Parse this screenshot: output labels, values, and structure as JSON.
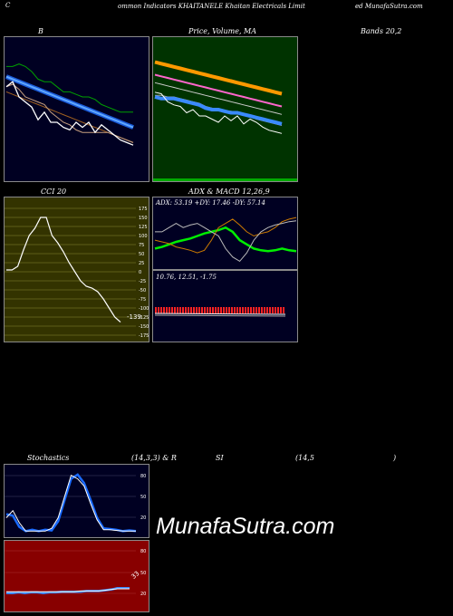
{
  "header": {
    "left_c": "C",
    "left": "ommon  Indicators KHAITANELE Khaitan  Electricals Limit",
    "right": "ed MunafaSutra.com"
  },
  "titles": {
    "b": "B",
    "price": "Price,  Volume,  MA",
    "bands": "Bands 20,2",
    "cci": "CCI 20",
    "adx": "ADX  & MACD 12,26,9",
    "stoch": "Stochastics",
    "stoch_params": "(14,3,3) & R",
    "rsi": "SI",
    "rsi_params": "(14,5",
    "rsi_close": ")"
  },
  "cci_axis": [
    "175",
    "150",
    "125",
    "100",
    "75",
    "50",
    "25",
    "0",
    "-25",
    "-50",
    "-75",
    "-100",
    "-125",
    "-150",
    "-175"
  ],
  "adx": {
    "info": "ADX: 53.19  +DY: 17.46  -DY: 57.14",
    "macd_info": "10.76,   12.51,  -1.75"
  },
  "stoch_axis": [
    "80",
    "50",
    "20"
  ],
  "rsi_axis": [
    "80",
    "50",
    "20"
  ],
  "labels": {
    "cci_value": "-139",
    "rsi_value": "33"
  },
  "watermark": "MunafaSutra.com",
  "chart_data": [
    {
      "type": "line",
      "title": "B",
      "series": [
        {
          "values": [
            62,
            62,
            63,
            62,
            60,
            57,
            56,
            56,
            54,
            52,
            52,
            51,
            50,
            50,
            49,
            47,
            46,
            45,
            44,
            44,
            44
          ]
        },
        {
          "values": [
            58,
            57,
            56,
            55,
            54,
            53,
            52,
            51,
            50,
            49,
            48,
            47,
            46,
            45,
            44,
            43,
            42,
            41,
            40,
            39,
            38
          ]
        },
        {
          "values": [
            52,
            51,
            50,
            49,
            48,
            47,
            46,
            45,
            44,
            43,
            42,
            41,
            40,
            39,
            38,
            37,
            36,
            35,
            34,
            33,
            32
          ]
        },
        {
          "values": [
            54,
            55,
            53,
            50,
            49,
            48,
            47,
            44,
            42,
            40,
            39,
            37,
            36,
            36,
            36,
            36,
            36,
            35,
            34,
            33,
            32
          ]
        },
        {
          "values": [
            55,
            56,
            51,
            49,
            47,
            44,
            45,
            42,
            41,
            41,
            40,
            40,
            39,
            41,
            38,
            40,
            38,
            37,
            36,
            34,
            33
          ]
        },
        {
          "values": [
            54,
            56,
            50,
            48,
            46,
            41,
            44,
            40,
            40,
            38,
            37,
            40,
            38,
            40,
            36,
            39,
            37,
            35,
            33,
            32,
            31
          ]
        }
      ]
    },
    {
      "type": "line",
      "title": "Price,  Volume,  MA",
      "series": [
        {
          "values": [
            100,
            99,
            98,
            97,
            96,
            95,
            94,
            93,
            92,
            91,
            90,
            89,
            88,
            87,
            86,
            85,
            84,
            83,
            82,
            81,
            80
          ]
        },
        {
          "values": [
            92,
            91,
            90,
            89,
            88,
            87,
            86,
            85,
            84,
            83,
            82,
            81,
            80,
            79,
            78,
            77,
            76,
            75,
            74,
            73,
            72
          ]
        },
        {
          "values": [
            87,
            86,
            85,
            84,
            83,
            82,
            81,
            80,
            79,
            78,
            77,
            76,
            75,
            74,
            73,
            72,
            71,
            70,
            69,
            68,
            67
          ]
        },
        {
          "values": [
            79,
            79,
            78,
            78,
            77,
            76,
            75,
            74,
            72,
            71,
            70,
            69,
            69,
            68,
            67,
            66,
            64,
            63,
            62,
            61,
            60
          ]
        },
        {
          "values": [
            78,
            77,
            77,
            77,
            76,
            75,
            74,
            73,
            71,
            70,
            70,
            69,
            68,
            68,
            67,
            66,
            65,
            64,
            63,
            62,
            61
          ]
        },
        {
          "values": [
            81,
            80,
            75,
            73,
            72,
            68,
            70,
            66,
            66,
            64,
            62,
            66,
            63,
            66,
            61,
            64,
            62,
            59,
            57,
            56,
            55
          ]
        }
      ]
    },
    {
      "type": "line",
      "title": "CCI 20",
      "ylim": [
        -175,
        175
      ],
      "series": [
        {
          "values": [
            5,
            5,
            15,
            60,
            100,
            120,
            150,
            150,
            100,
            80,
            55,
            25,
            0,
            -25,
            -40,
            -45,
            -55,
            -75,
            -100,
            -125,
            -139
          ]
        }
      ]
    },
    {
      "type": "line",
      "title": "ADX  & MACD 12,26,9",
      "series": [
        {
          "values": [
            20,
            22,
            25,
            28,
            30,
            32,
            35,
            38,
            40,
            42,
            45,
            40,
            30,
            25,
            20,
            18,
            17,
            18,
            20,
            18,
            17
          ]
        },
        {
          "values": [
            30,
            28,
            26,
            22,
            20,
            18,
            15,
            18,
            30,
            45,
            50,
            55,
            48,
            40,
            35,
            38,
            40,
            45,
            52,
            55,
            57
          ]
        },
        {
          "values": [
            40,
            40,
            45,
            50,
            45,
            48,
            50,
            45,
            40,
            35,
            20,
            10,
            5,
            15,
            30,
            40,
            45,
            48,
            50,
            52,
            53
          ]
        }
      ]
    },
    {
      "type": "line",
      "title": "Stochastics (14,3,3)",
      "ylim": [
        0,
        100
      ],
      "series": [
        {
          "values": [
            30,
            28,
            12,
            6,
            8,
            6,
            8,
            7,
            20,
            50,
            80,
            86,
            74,
            50,
            25,
            10,
            9,
            8,
            6,
            7,
            6
          ]
        },
        {
          "values": [
            25,
            35,
            18,
            6,
            6,
            6,
            6,
            10,
            25,
            55,
            85,
            80,
            70,
            45,
            22,
            8,
            8,
            7,
            6,
            6,
            6
          ]
        }
      ]
    },
    {
      "type": "line",
      "title": "RSI (14,5)",
      "ylim": [
        0,
        100
      ],
      "series": [
        {
          "values": [
            26,
            26,
            27,
            26,
            27,
            27,
            26,
            27,
            27,
            28,
            28,
            28,
            28,
            29,
            29,
            29,
            30,
            31,
            33,
            33,
            33
          ]
        },
        {
          "values": [
            28,
            28,
            28,
            28,
            28,
            28,
            28,
            28,
            28,
            28,
            28,
            28,
            29,
            29,
            29,
            29,
            30,
            31,
            32,
            32,
            32
          ]
        }
      ]
    }
  ]
}
